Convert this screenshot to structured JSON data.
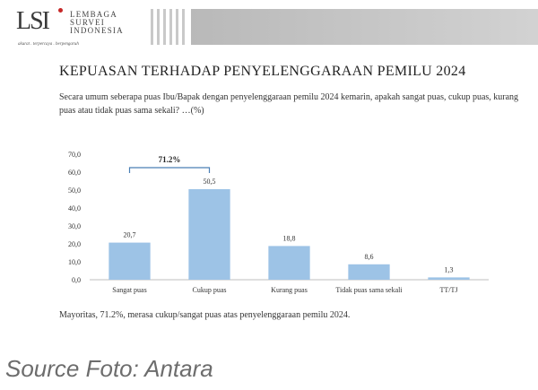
{
  "header": {
    "logo_mark": "LSI",
    "logo_lines": [
      "LEMBAGA",
      "SURVEI",
      "INDONESIA"
    ],
    "logo_tagline": "akurat . terpercaya . berpengaruh"
  },
  "title": "KEPUASAN TERHADAP PENYELENGGARAAN PEMILU 2024",
  "question": "Secara umum seberapa puas Ibu/Bapak dengan penyelenggaraan pemilu 2024 kemarin, apakah sangat puas, cukup puas, kurang puas atau tidak puas sama sekali? …(%)",
  "footnote": "Mayoritas, 71.2%, merasa cukup/sangat puas atas penyelenggaraan pemilu 2024.",
  "source": "Source Foto: Antara",
  "colors": {
    "bar": "#9dc3e6",
    "axis": "#bfbfbf"
  },
  "chart_data": {
    "type": "bar",
    "categories": [
      "Sangat puas",
      "Cukup puas",
      "Kurang puas",
      "Tidak puas sama sekali",
      "TT/TJ"
    ],
    "values": [
      20.7,
      50.5,
      18.8,
      8.6,
      1.3
    ],
    "data_labels": [
      "20,7",
      "50,5",
      "18,8",
      "8,6",
      "1,3"
    ],
    "y_ticks": [
      "0,0",
      "10,0",
      "20,0",
      "30,0",
      "40,0",
      "50,0",
      "60,0",
      "70,0"
    ],
    "ylim": [
      0,
      70
    ],
    "annotation": {
      "text": "71.2%",
      "spans": [
        "Sangat puas",
        "Cukup puas"
      ]
    },
    "grid": false,
    "legend": false
  }
}
